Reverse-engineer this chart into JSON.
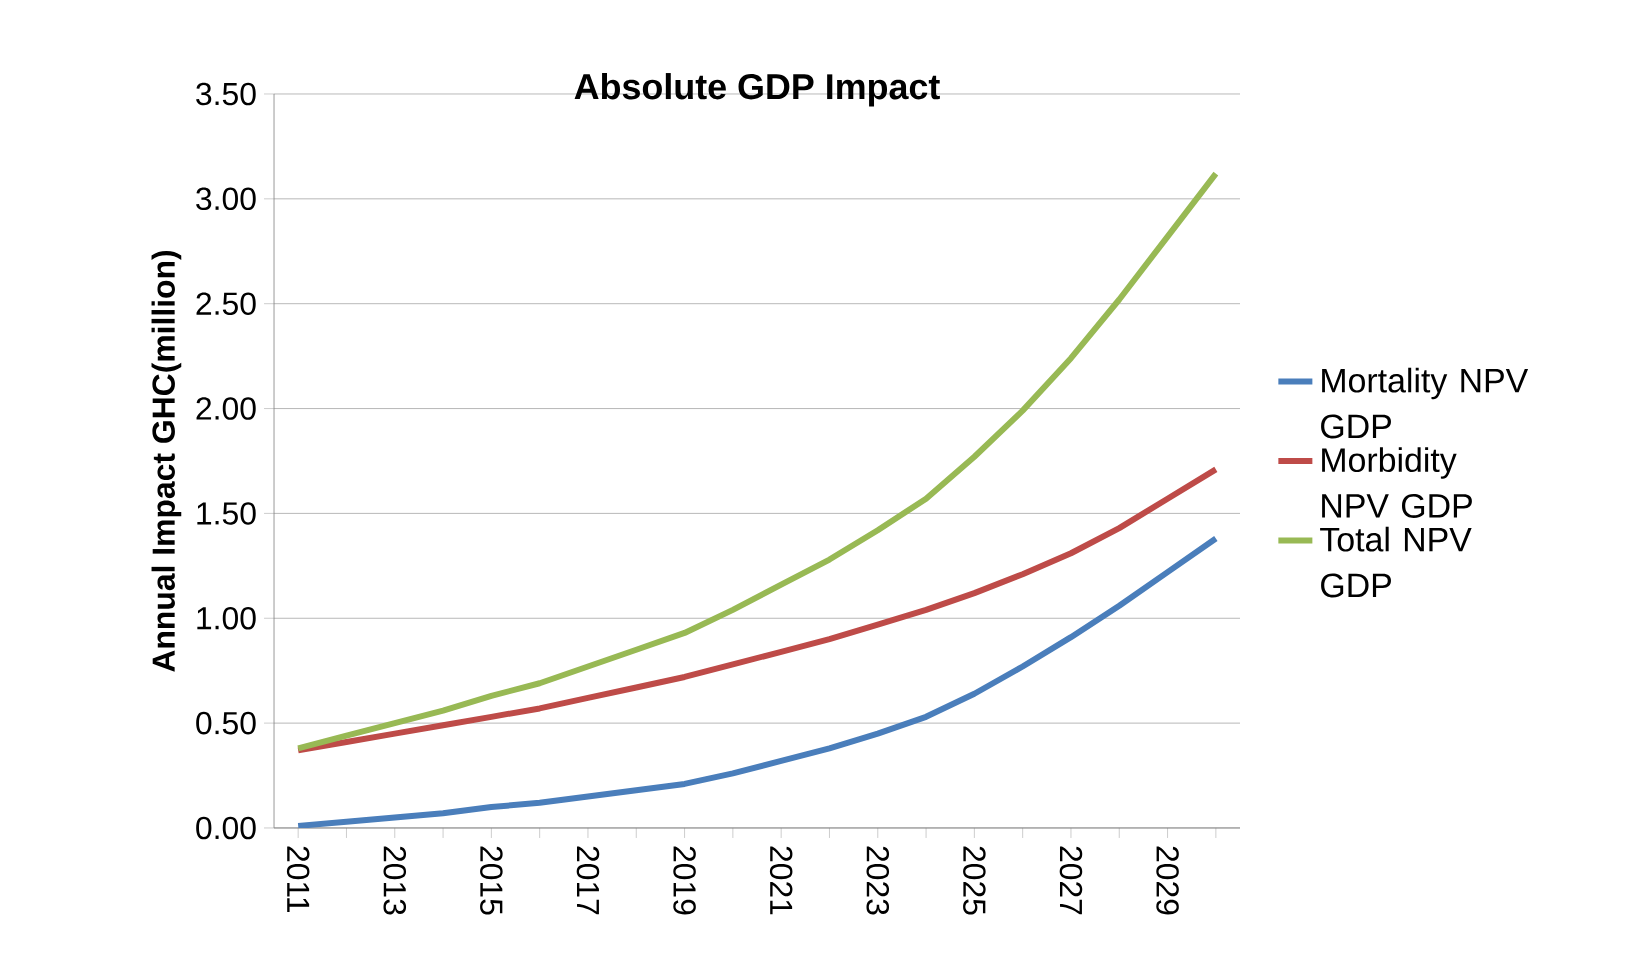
{
  "chart_data": {
    "type": "line",
    "title": "Absolute GDP Impact",
    "ylabel": "Annual Impact GHC(million)",
    "categories": [
      "2011",
      null,
      "2013",
      null,
      "2015",
      null,
      "2017",
      null,
      "2019",
      null,
      "2021",
      null,
      "2023",
      null,
      "2025",
      null,
      "2027",
      null,
      "2029",
      null
    ],
    "series": [
      {
        "name": "Mortality NPV GDP",
        "color": "#4a7ebb",
        "values": [
          0.01,
          0.03,
          0.05,
          0.07,
          0.1,
          0.12,
          0.15,
          0.18,
          0.21,
          0.26,
          0.32,
          0.38,
          0.45,
          0.53,
          0.64,
          0.77,
          0.91,
          1.06,
          1.22,
          1.38
        ]
      },
      {
        "name": "Morbidity NPV GDP",
        "color": "#be4b48",
        "values": [
          0.37,
          0.41,
          0.45,
          0.49,
          0.53,
          0.57,
          0.62,
          0.67,
          0.72,
          0.78,
          0.84,
          0.9,
          0.97,
          1.04,
          1.12,
          1.21,
          1.31,
          1.43,
          1.57,
          1.71
        ]
      },
      {
        "name": "Total NPV GDP",
        "color": "#98b954",
        "values": [
          0.38,
          0.44,
          0.5,
          0.56,
          0.63,
          0.69,
          0.77,
          0.85,
          0.93,
          1.04,
          1.16,
          1.28,
          1.42,
          1.57,
          1.77,
          1.99,
          2.24,
          2.52,
          2.82,
          3.12
        ]
      }
    ],
    "ylim": [
      0,
      3.5
    ],
    "yticks": [
      {
        "value": 0,
        "label": "0.00"
      },
      {
        "value": 0.5,
        "label": "0.50"
      },
      {
        "value": 1,
        "label": "1.00"
      },
      {
        "value": 1.5,
        "label": "1.50"
      },
      {
        "value": 2,
        "label": "2.00"
      },
      {
        "value": 2.5,
        "label": "2.50"
      },
      {
        "value": 3,
        "label": "3.00"
      },
      {
        "value": 3.5,
        "label": "3.50"
      }
    ],
    "grid": "y",
    "legend": "right",
    "marker": "none",
    "line_style": "solid"
  }
}
